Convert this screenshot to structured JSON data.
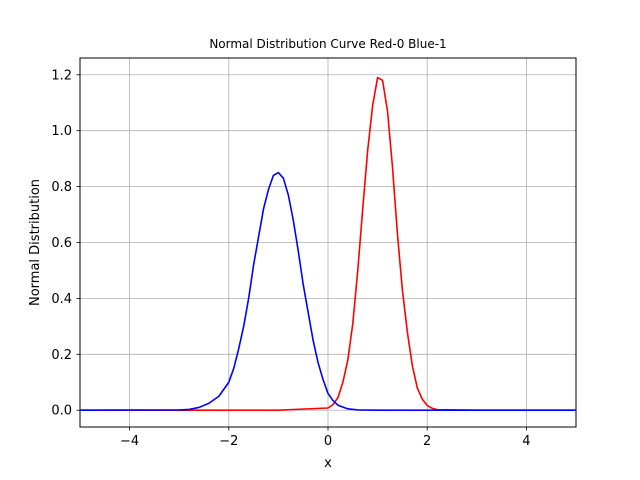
{
  "chart_data": {
    "type": "line",
    "title": "Normal Distribution Curve Red-0 Blue-1",
    "xlabel": "x",
    "ylabel": "Normal Distribution",
    "xlim": [
      -5,
      5
    ],
    "ylim": [
      -0.06,
      1.26
    ],
    "grid": true,
    "legend": "none",
    "x_ticks": [
      -4,
      -2,
      0,
      2,
      4
    ],
    "x_tick_labels": [
      "−4",
      "−2",
      "0",
      "2",
      "4"
    ],
    "y_ticks": [
      0.0,
      0.2,
      0.4,
      0.6,
      0.8,
      1.0,
      1.2
    ],
    "y_tick_labels": [
      "0.0",
      "0.2",
      "0.4",
      "0.6",
      "0.8",
      "1.0",
      "1.2"
    ],
    "series": [
      {
        "color": "#ff0000",
        "x": [
          -5.0,
          -2.0,
          -1.0,
          0.0,
          0.1,
          0.2,
          0.3,
          0.4,
          0.5,
          0.6,
          0.7,
          0.8,
          0.9,
          1.0,
          1.1,
          1.2,
          1.3,
          1.4,
          1.5,
          1.6,
          1.7,
          1.8,
          1.9,
          2.0,
          2.1,
          2.2,
          3.0,
          5.0
        ],
        "y": [
          0.0,
          0.0,
          0.0,
          0.008,
          0.02,
          0.045,
          0.1,
          0.18,
          0.31,
          0.5,
          0.72,
          0.93,
          1.09,
          1.19,
          1.18,
          1.07,
          0.87,
          0.63,
          0.43,
          0.28,
          0.16,
          0.08,
          0.04,
          0.017,
          0.007,
          0.002,
          0.0,
          0.0
        ]
      },
      {
        "color": "#0000ff",
        "x": [
          -5.0,
          -3.0,
          -2.8,
          -2.6,
          -2.4,
          -2.2,
          -2.0,
          -1.9,
          -1.8,
          -1.7,
          -1.6,
          -1.5,
          -1.4,
          -1.3,
          -1.2,
          -1.1,
          -1.0,
          -0.9,
          -0.8,
          -0.7,
          -0.6,
          -0.5,
          -0.4,
          -0.3,
          -0.2,
          -0.1,
          0.0,
          0.1,
          0.2,
          0.4,
          0.6,
          1.0,
          5.0
        ],
        "y": [
          0.0,
          0.001,
          0.003,
          0.01,
          0.025,
          0.05,
          0.1,
          0.15,
          0.22,
          0.3,
          0.4,
          0.52,
          0.62,
          0.72,
          0.79,
          0.84,
          0.85,
          0.83,
          0.77,
          0.68,
          0.57,
          0.45,
          0.35,
          0.25,
          0.17,
          0.11,
          0.06,
          0.035,
          0.018,
          0.005,
          0.001,
          0.0,
          0.0
        ]
      }
    ]
  }
}
